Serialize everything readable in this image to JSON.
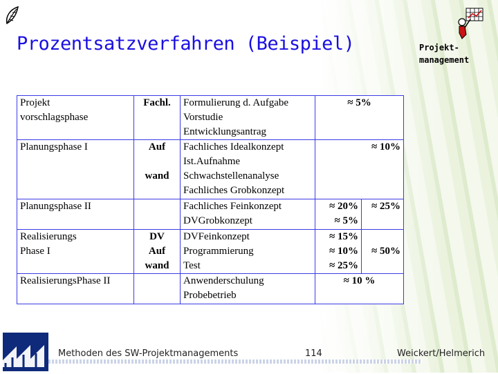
{
  "header": {
    "title": "Prozentsatzverfahren (Beispiel)",
    "badge_line1": "Projekt-",
    "badge_line2": "management"
  },
  "table": {
    "rows": [
      {
        "phase": [
          "Projekt",
          "vorschlagsphase"
        ],
        "mid": "Fachl.",
        "activities": [
          "Formulierung d. Aufgabe",
          "Vorstudie",
          "Entwicklungsantrag"
        ],
        "pct": "≈ 5%"
      },
      {
        "phase": [
          "Planungsphase I"
        ],
        "mid": "Auf",
        "activities": [
          "Fachliches Idealkonzept",
          "Ist.Aufnahme",
          "Schwachstellenanalyse",
          "Fachliches Grobkonzept"
        ],
        "pct": "≈ 10%",
        "mid2": "wand"
      },
      {
        "phase": [
          "Planungsphase II"
        ],
        "activities": [
          "Fachliches Feinkonzept",
          "DVGrobkonzept"
        ],
        "pct": [
          "≈ 20%",
          "≈ 5%"
        ],
        "pct_group": "≈ 25%"
      },
      {
        "phase": [
          "Realisierungs",
          "Phase I"
        ],
        "mid": [
          "DV",
          "Auf",
          "wand"
        ],
        "activities": [
          "DVFeinkonzept",
          "Programmierung",
          "Test"
        ],
        "pct": [
          "≈ 15%",
          "≈ 10%",
          "≈ 25%"
        ],
        "pct_group": "≈ 50%"
      },
      {
        "phase": [
          "RealisierungsPhase II"
        ],
        "activities": [
          "Anwenderschulung",
          "Probebetrieb"
        ],
        "pct": "≈ 10 %"
      }
    ]
  },
  "footer": {
    "course": "Methoden des SW-Projektmanagements",
    "page": "114",
    "authors": "Weickert/Helmerich"
  },
  "icons": {
    "top_left": "leaf-icon",
    "top_right": "project-manager-icon",
    "bottom_left": "university-logo"
  }
}
